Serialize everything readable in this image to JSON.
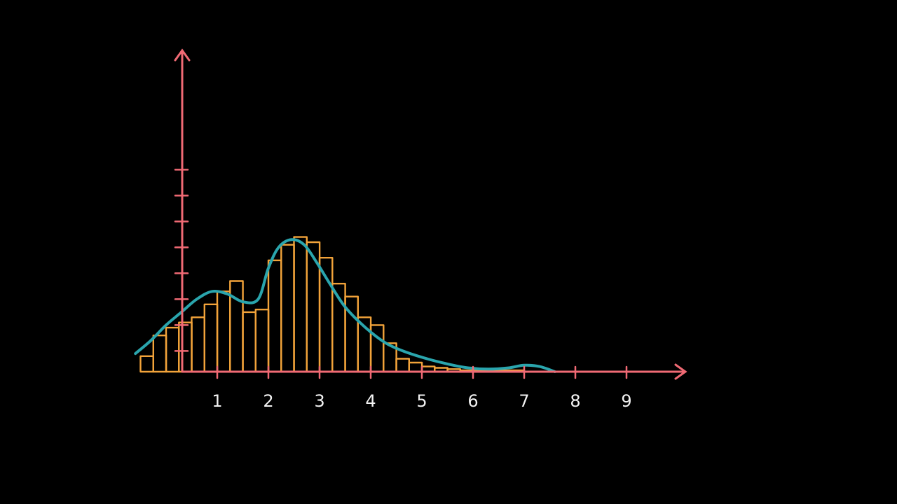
{
  "chart_data": {
    "type": "bar",
    "title": "",
    "xlabel": "",
    "ylabel": "",
    "xlim": [
      -0.65,
      9.65
    ],
    "ylim": [
      0,
      9
    ],
    "x_ticks": [
      1,
      2,
      3,
      4,
      5,
      6,
      7,
      8,
      9
    ],
    "x_tick_labels": [
      "1",
      "2",
      "3",
      "4",
      "5",
      "6",
      "7",
      "8",
      "9"
    ],
    "y_ticks": [
      0.8,
      1.8,
      2.8,
      3.8,
      4.8,
      5.8,
      6.8,
      7.8
    ],
    "bin_width": 0.25,
    "bins": [
      {
        "x": -0.5,
        "value": 0.6
      },
      {
        "x": -0.25,
        "value": 1.4
      },
      {
        "x": 0.0,
        "value": 1.7
      },
      {
        "x": 0.25,
        "value": 1.9
      },
      {
        "x": 0.5,
        "value": 2.1
      },
      {
        "x": 0.75,
        "value": 2.6
      },
      {
        "x": 1.0,
        "value": 3.1
      },
      {
        "x": 1.25,
        "value": 3.5
      },
      {
        "x": 1.5,
        "value": 2.3
      },
      {
        "x": 1.75,
        "value": 2.4
      },
      {
        "x": 2.0,
        "value": 4.3
      },
      {
        "x": 2.25,
        "value": 4.9
      },
      {
        "x": 2.5,
        "value": 5.2
      },
      {
        "x": 2.75,
        "value": 5.0
      },
      {
        "x": 3.0,
        "value": 4.4
      },
      {
        "x": 3.25,
        "value": 3.4
      },
      {
        "x": 3.5,
        "value": 2.9
      },
      {
        "x": 3.75,
        "value": 2.1
      },
      {
        "x": 4.0,
        "value": 1.8
      },
      {
        "x": 4.25,
        "value": 1.1
      },
      {
        "x": 4.5,
        "value": 0.5
      },
      {
        "x": 4.75,
        "value": 0.35
      },
      {
        "x": 5.0,
        "value": 0.2
      },
      {
        "x": 5.25,
        "value": 0.15
      },
      {
        "x": 5.5,
        "value": 0.1
      },
      {
        "x": 5.75,
        "value": 0.05
      },
      {
        "x": 6.0,
        "value": 0.05
      },
      {
        "x": 6.25,
        "value": 0.05
      },
      {
        "x": 6.5,
        "value": 0.05
      },
      {
        "x": 6.75,
        "value": 0.05
      }
    ],
    "density_curve": {
      "x": [
        -0.6,
        -0.3,
        0.0,
        0.3,
        0.6,
        0.9,
        1.2,
        1.5,
        1.8,
        2.0,
        2.2,
        2.45,
        2.7,
        2.95,
        3.2,
        3.5,
        3.9,
        4.3,
        4.7,
        5.1,
        5.5,
        5.9,
        6.3,
        6.7,
        7.0,
        7.3,
        7.6
      ],
      "y": [
        0.7,
        1.2,
        1.8,
        2.3,
        2.8,
        3.1,
        3.0,
        2.7,
        2.8,
        4.0,
        4.8,
        5.1,
        4.9,
        4.2,
        3.4,
        2.5,
        1.7,
        1.1,
        0.75,
        0.5,
        0.3,
        0.15,
        0.1,
        0.15,
        0.25,
        0.2,
        0.0
      ]
    },
    "grid": false,
    "legend": "none",
    "colors": {
      "axis": "#f06a74",
      "bars": "#f2a33a",
      "curve": "#2aa5ad",
      "tick_text": "#f2f2f2"
    }
  }
}
